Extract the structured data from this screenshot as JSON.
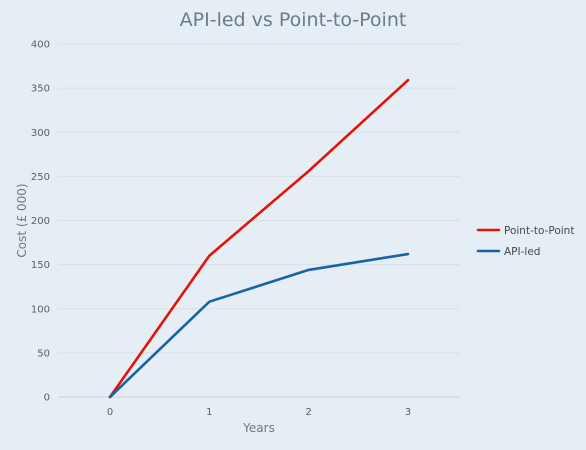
{
  "chart_data": {
    "type": "line",
    "title": "API-led vs Point-to-Point",
    "xlabel": "Years",
    "ylabel": "Cost (£ 000)",
    "categories": [
      "0",
      "1",
      "2",
      "3"
    ],
    "x": [
      0,
      1,
      2,
      3
    ],
    "ylim": [
      0,
      400
    ],
    "yticks": [
      0,
      50,
      100,
      150,
      200,
      250,
      300,
      350,
      400
    ],
    "grid": true,
    "legend_position": "right",
    "series": [
      {
        "name": "Point-to-Point",
        "values": [
          0,
          160,
          256,
          359
        ],
        "color": "#e3120b"
      },
      {
        "name": "API-led",
        "values": [
          0,
          108,
          144,
          162
        ],
        "color": "#1763a8"
      }
    ]
  }
}
